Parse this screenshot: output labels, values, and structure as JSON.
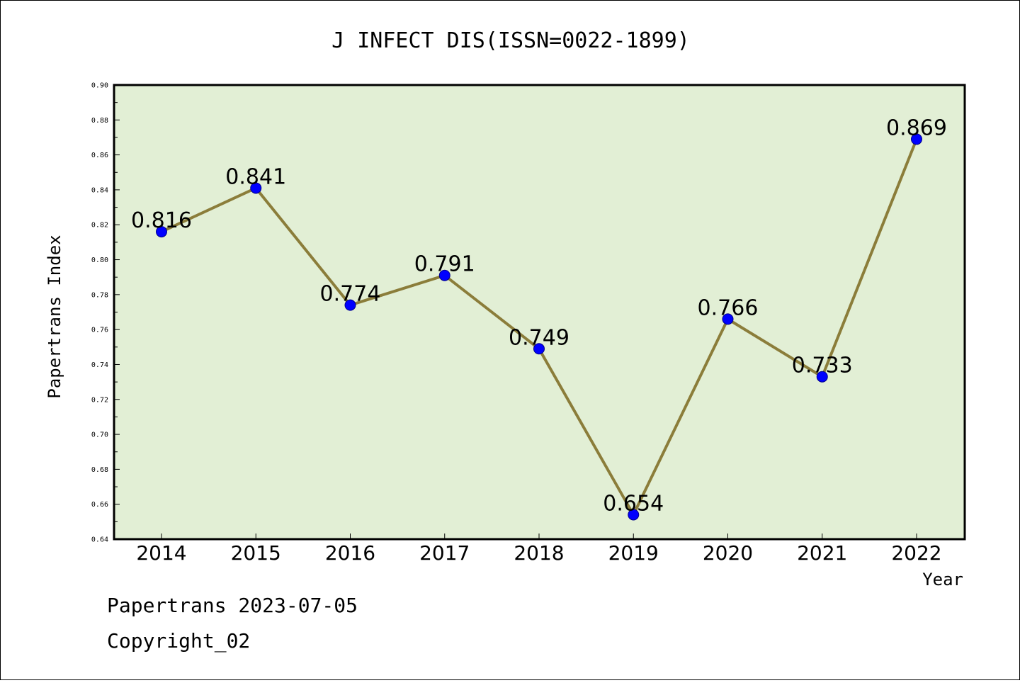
{
  "chart_data": {
    "type": "line",
    "title": "J INFECT DIS(ISSN=0022-1899)",
    "xlabel": "Year",
    "ylabel": "Papertrans Index",
    "categories": [
      "2014",
      "2015",
      "2016",
      "2017",
      "2018",
      "2019",
      "2020",
      "2021",
      "2022"
    ],
    "series": [
      {
        "values": [
          0.816,
          0.841,
          0.774,
          0.791,
          0.749,
          0.654,
          0.766,
          0.733,
          0.869
        ]
      }
    ],
    "data_labels": [
      "0.816",
      "0.841",
      "0.774",
      "0.791",
      "0.749",
      "0.654",
      "0.766",
      "0.733",
      "0.869"
    ],
    "ylim": [
      0.64,
      0.9
    ],
    "yticks": [
      "0.64",
      "0.66",
      "0.68",
      "0.70",
      "0.72",
      "0.74",
      "0.76",
      "0.78",
      "0.80",
      "0.82",
      "0.84",
      "0.86",
      "0.88",
      "0.90"
    ],
    "grid": false,
    "colors": {
      "plot_background": "#e2efd5",
      "line": "#8b7d3a",
      "marker": "#0000ff"
    }
  },
  "footer": {
    "date_line": "Papertrans 2023-07-05",
    "copyright": "Copyright_02"
  }
}
